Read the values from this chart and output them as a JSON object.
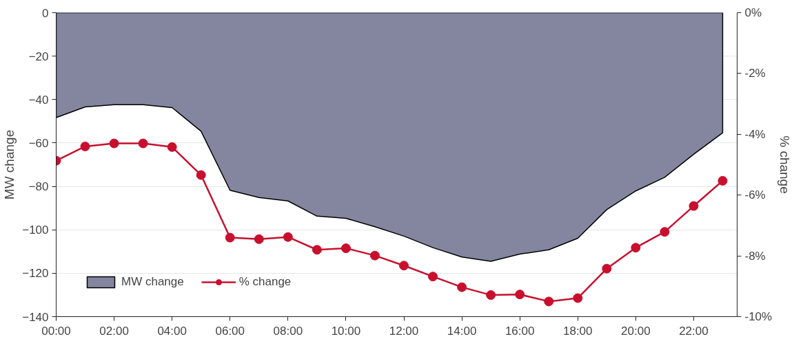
{
  "chart_data": {
    "type": "line",
    "x": [
      0,
      1,
      2,
      3,
      4,
      5,
      6,
      7,
      8,
      9,
      10,
      11,
      12,
      13,
      14,
      15,
      16,
      17,
      18,
      19,
      20,
      21,
      22,
      23
    ],
    "series": [
      {
        "name": "MW change",
        "type": "area",
        "axis": "y",
        "color": "#83869e",
        "values": [
          -48.3,
          -43.4,
          -42.4,
          -42.4,
          -43.7,
          -54.6,
          -81.8,
          -85.1,
          -86.7,
          -93.7,
          -94.7,
          -98.6,
          -102.9,
          -108.2,
          -112.5,
          -114.5,
          -111.2,
          -109.2,
          -103.9,
          -90.7,
          -82.1,
          -75.8,
          -65.2,
          -55.3
        ]
      },
      {
        "name": "% change",
        "axis": "y2",
        "color": "#c8102e",
        "marker": "circle",
        "values": [
          -4.87,
          -4.4,
          -4.3,
          -4.3,
          -4.42,
          -5.34,
          -7.4,
          -7.45,
          -7.38,
          -7.8,
          -7.75,
          -7.99,
          -8.32,
          -8.68,
          -9.03,
          -9.29,
          -9.27,
          -9.5,
          -9.39,
          -8.42,
          -7.73,
          -7.21,
          -6.36,
          -5.53
        ]
      }
    ],
    "ylabel": "MW change",
    "y2label": "% change",
    "xlim": [
      0,
      23.5
    ],
    "xticks": [
      {
        "value": 0,
        "label": "00:00"
      },
      {
        "value": 2,
        "label": "02:00"
      },
      {
        "value": 4,
        "label": "04:00"
      },
      {
        "value": 6,
        "label": "06:00"
      },
      {
        "value": 8,
        "label": "08:00"
      },
      {
        "value": 10,
        "label": "10:00"
      },
      {
        "value": 12,
        "label": "12:00"
      },
      {
        "value": 14,
        "label": "14:00"
      },
      {
        "value": 16,
        "label": "16:00"
      },
      {
        "value": 18,
        "label": "18:00"
      },
      {
        "value": 20,
        "label": "20:00"
      },
      {
        "value": 22,
        "label": "22:00"
      }
    ],
    "ylim": [
      -140,
      0
    ],
    "yticks": [
      -140,
      -120,
      -100,
      -80,
      -60,
      -40,
      -20,
      0
    ],
    "y2lim": [
      -10,
      0
    ],
    "y2ticks": [
      {
        "value": -10,
        "label": "-10%"
      },
      {
        "value": -8,
        "label": "-8%"
      },
      {
        "value": -6,
        "label": "-6%"
      },
      {
        "value": -4,
        "label": "-4%"
      },
      {
        "value": -2,
        "label": "-2%"
      },
      {
        "value": 0,
        "label": "0%"
      }
    ],
    "grid": "y",
    "legend": "bottom left"
  }
}
